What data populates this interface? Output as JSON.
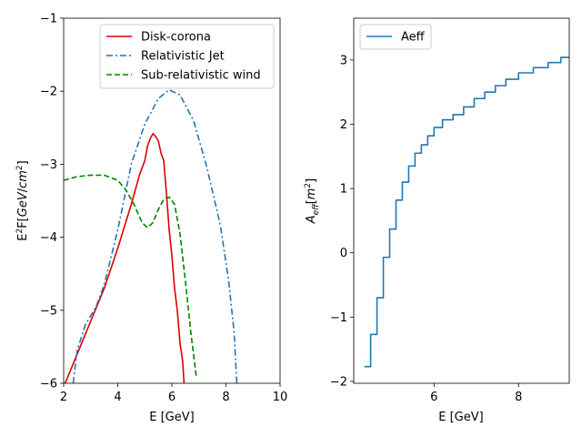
{
  "chart_data": [
    {
      "type": "line",
      "xlabel": "E [GeV]",
      "ylabel": "E^2F[GeV/cm^2]",
      "xlim": [
        2,
        10
      ],
      "ylim": [
        -6,
        -1
      ],
      "xticks": [
        2,
        4,
        6,
        8,
        10
      ],
      "yticks": [
        -6,
        -5,
        -4,
        -3,
        -2,
        -1
      ],
      "xtick_labels": [
        "2",
        "4",
        "6",
        "8",
        "10"
      ],
      "ytick_labels": [
        "−6",
        "−5",
        "−4",
        "−3",
        "−2",
        "−1"
      ],
      "grid": false,
      "legend": "top-center",
      "series": [
        {
          "name": "Disk-corona",
          "color": "#dd0000",
          "style": "solid",
          "points": [
            [
              2.0,
              -6.05
            ],
            [
              2.5,
              -5.6
            ],
            [
              3.0,
              -5.15
            ],
            [
              3.5,
              -4.7
            ],
            [
              4.0,
              -4.15
            ],
            [
              4.5,
              -3.55
            ],
            [
              4.8,
              -3.15
            ],
            [
              5.0,
              -2.95
            ],
            [
              5.1,
              -2.75
            ],
            [
              5.2,
              -2.65
            ],
            [
              5.3,
              -2.58
            ],
            [
              5.4,
              -2.62
            ],
            [
              5.5,
              -2.68
            ],
            [
              5.6,
              -2.85
            ],
            [
              5.7,
              -2.95
            ],
            [
              5.8,
              -3.4
            ],
            [
              5.9,
              -3.9
            ],
            [
              6.0,
              -4.25
            ],
            [
              6.1,
              -4.7
            ],
            [
              6.2,
              -5.0
            ],
            [
              6.3,
              -5.45
            ],
            [
              6.4,
              -5.7
            ],
            [
              6.45,
              -6.0
            ]
          ]
        },
        {
          "name": "Relativistic Jet",
          "color": "#1f77b4",
          "style": "dashdot",
          "points": [
            [
              2.35,
              -6.0
            ],
            [
              2.5,
              -5.55
            ],
            [
              2.8,
              -5.2
            ],
            [
              3.2,
              -4.95
            ],
            [
              3.5,
              -4.65
            ],
            [
              4.0,
              -3.9
            ],
            [
              4.5,
              -3.0
            ],
            [
              5.0,
              -2.45
            ],
            [
              5.5,
              -2.1
            ],
            [
              5.9,
              -1.98
            ],
            [
              6.3,
              -2.05
            ],
            [
              6.8,
              -2.4
            ],
            [
              7.3,
              -3.05
            ],
            [
              7.8,
              -3.85
            ],
            [
              8.1,
              -4.6
            ],
            [
              8.3,
              -5.3
            ],
            [
              8.4,
              -6.0
            ]
          ]
        },
        {
          "name": "Sub-relativistic wind",
          "color": "#008000",
          "style": "dashed",
          "points": [
            [
              2.0,
              -3.22
            ],
            [
              2.5,
              -3.17
            ],
            [
              3.0,
              -3.15
            ],
            [
              3.5,
              -3.15
            ],
            [
              4.0,
              -3.22
            ],
            [
              4.3,
              -3.35
            ],
            [
              4.6,
              -3.55
            ],
            [
              4.9,
              -3.8
            ],
            [
              5.1,
              -3.87
            ],
            [
              5.3,
              -3.8
            ],
            [
              5.5,
              -3.62
            ],
            [
              5.7,
              -3.48
            ],
            [
              5.9,
              -3.45
            ],
            [
              6.1,
              -3.55
            ],
            [
              6.3,
              -3.95
            ],
            [
              6.5,
              -4.6
            ],
            [
              6.7,
              -5.3
            ],
            [
              6.8,
              -5.6
            ],
            [
              6.9,
              -5.9
            ]
          ]
        }
      ]
    },
    {
      "type": "line",
      "xlabel": "E [GeV]",
      "ylabel": "A_eff[m^2]",
      "xlim": [
        4.1,
        9.2
      ],
      "ylim": [
        -2.03,
        3.65
      ],
      "xticks": [
        6,
        8
      ],
      "yticks": [
        -2,
        -1,
        0,
        1,
        2,
        3
      ],
      "xtick_labels": [
        "6",
        "8"
      ],
      "ytick_labels": [
        "−2",
        "−1",
        "0",
        "1",
        "2",
        "3"
      ],
      "grid": false,
      "legend": "top-left",
      "series": [
        {
          "name": "Aeff",
          "color": "#1f77b4",
          "style": "step",
          "x": [
            4.35,
            4.5,
            4.65,
            4.8,
            4.95,
            5.1,
            5.25,
            5.4,
            5.55,
            5.7,
            5.85,
            6.0,
            6.2,
            6.45,
            6.7,
            6.95,
            7.2,
            7.45,
            7.7,
            8.0,
            8.35,
            8.7,
            9.0
          ],
          "y": [
            -1.77,
            -1.27,
            -0.7,
            -0.07,
            0.37,
            0.82,
            1.1,
            1.35,
            1.55,
            1.68,
            1.82,
            1.95,
            2.07,
            2.15,
            2.27,
            2.4,
            2.5,
            2.6,
            2.7,
            2.8,
            2.88,
            2.96,
            3.04
          ]
        }
      ]
    }
  ]
}
